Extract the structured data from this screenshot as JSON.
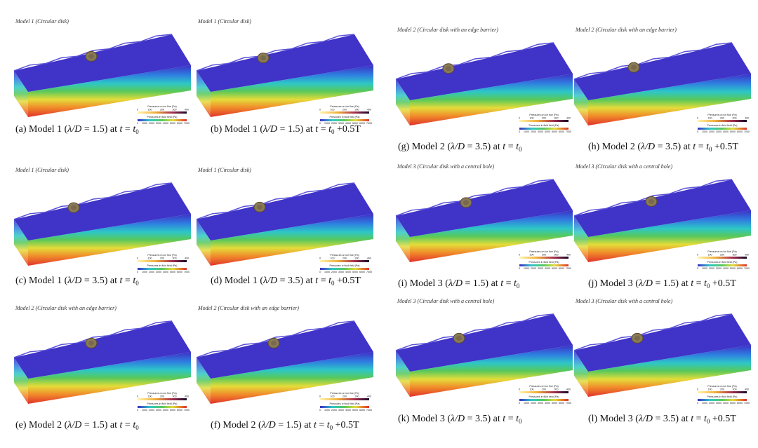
{
  "legend": {
    "ice_title": "Pressures on ice floe (Pa)",
    "ice_ticks": [
      0,
      100,
      200,
      300,
      400
    ],
    "fluid_title": "Pressures in fluid field (Pa)",
    "fluid_ticks": [
      0,
      1000,
      2000,
      3000,
      4000,
      5000,
      6000,
      7000
    ]
  },
  "panels": [
    {
      "title": "Model 1 (Circular disk)",
      "caption": {
        "prefix": "(a) Model 1 (",
        "ratio": "λ/D",
        "suffix": " = 1.5)  at ",
        "t": "t",
        "eq": " = ",
        "base": "t",
        "sub": "0"
      }
    },
    {
      "title": "Model 1 (Circular disk)",
      "caption": {
        "prefix": "(b) Model 1 (",
        "ratio": "λ/D",
        "suffix": " = 1.5) at ",
        "t": "t",
        "eq": " = ",
        "base": "t",
        "sub": "0",
        "tail": " +0.5T"
      }
    },
    {
      "title": "Model 1 (Circular disk)",
      "caption": {
        "prefix": "(c) Model 1 (",
        "ratio": "λ/D",
        "suffix": " = 3.5)  at ",
        "t": "t",
        "eq": " = ",
        "base": "t",
        "sub": "0"
      }
    },
    {
      "title": "Model 1 (Circular disk)",
      "caption": {
        "prefix": "(d) Model 1 (",
        "ratio": "λ/D",
        "suffix": " = 3.5) at ",
        "t": "t",
        "eq": " = ",
        "base": "t",
        "sub": "0",
        "tail": " +0.5T"
      }
    },
    {
      "title": "Model 2 (Circular disk with an edge barrier)",
      "caption": {
        "prefix": "(e) Model 2 (",
        "ratio": "λ/D",
        "suffix": " = 1.5)  at ",
        "t": "t",
        "eq": " = ",
        "base": "t",
        "sub": "0"
      }
    },
    {
      "title": "Model 2 (Circular disk with an edge barrier)",
      "caption": {
        "prefix": "(f) Model 2 (",
        "ratio": "λ/D",
        "suffix": " = 1.5)  at ",
        "t": "t",
        "eq": " = ",
        "base": "t",
        "sub": "0",
        "tail": " +0.5T"
      }
    },
    {
      "title": "Model 2 (Circular disk with an edge barrier)",
      "caption": {
        "prefix": "(g) Model 2 (",
        "ratio": "λ/D",
        "suffix": " = 3.5)  at ",
        "t": "t",
        "eq": " = ",
        "base": "t",
        "sub": "0"
      }
    },
    {
      "title": "Model 2 (Circular disk with an edge barrier)",
      "caption": {
        "prefix": "(h) Model 2 (",
        "ratio": "λ/D",
        "suffix": " = 3.5)  at ",
        "t": "t",
        "eq": " = ",
        "base": "t",
        "sub": "0",
        "tail": " +0.5T"
      }
    },
    {
      "title": "Model 3 (Circular disk with a central hole)",
      "caption": {
        "prefix": "(i) Model 3 (",
        "ratio": "λ/D",
        "suffix": " = 1.5)  at ",
        "t": "t",
        "eq": " = ",
        "base": "t",
        "sub": "0"
      }
    },
    {
      "title": "Model 3 (Circular disk with a central hole)",
      "caption": {
        "prefix": "(j) Model 3 (",
        "ratio": "λ/D",
        "suffix": " = 1.5) at ",
        "t": "t",
        "eq": " = ",
        "base": "t",
        "sub": "0",
        "tail": " +0.5T"
      }
    },
    {
      "title": "Model 3 (Circular disk with a central hole)",
      "caption": {
        "prefix": "(k) Model 3 (",
        "ratio": "λ/D",
        "suffix": " = 3.5)  at ",
        "t": "t",
        "eq": " = ",
        "base": "t",
        "sub": "0"
      }
    },
    {
      "title": "Model 3 (Circular disk with a central hole)",
      "caption": {
        "prefix": "(l) Model 3 (",
        "ratio": "λ/D",
        "suffix": " = 3.5) at ",
        "t": "t",
        "eq": " = ",
        "base": "t",
        "sub": "0",
        "tail": " +0.5T"
      }
    }
  ]
}
